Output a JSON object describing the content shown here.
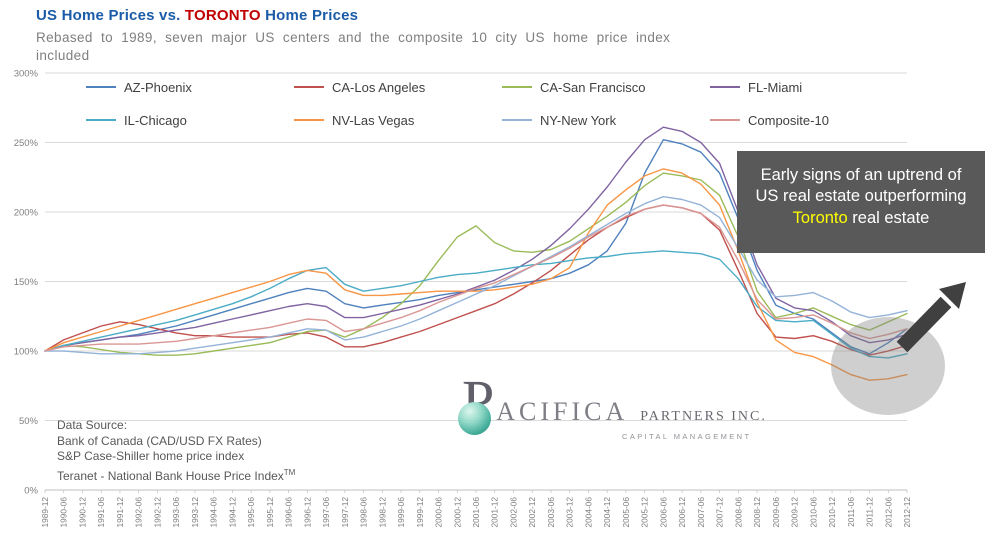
{
  "header": {
    "title_us": "US Home Prices vs.",
    "title_toronto": "TORONTO",
    "title_rest": "Home Prices",
    "title_color": "#1B5CA8",
    "toronto_color": "#C00000",
    "subtitle_line1": "Rebased to 1989, seven major US centers and the composite 10 city US home price index",
    "subtitle_line2": "included"
  },
  "chart_data": {
    "type": "line",
    "title": "US Home Prices vs. TORONTO Home Prices",
    "xlabel": "",
    "ylabel": "",
    "ylim": [
      0,
      300
    ],
    "yticks": [
      0,
      50,
      100,
      150,
      200,
      250,
      300
    ],
    "ytick_suffix": "%",
    "grid": true,
    "legend_position": "top-inside",
    "categories": [
      "1989-12",
      "1990-06",
      "1990-12",
      "1991-06",
      "1991-12",
      "1992-06",
      "1992-12",
      "1993-06",
      "1993-12",
      "1994-06",
      "1994-12",
      "1995-06",
      "1995-12",
      "1996-06",
      "1996-12",
      "1997-06",
      "1997-12",
      "1998-06",
      "1998-12",
      "1999-06",
      "1999-12",
      "2000-06",
      "2000-12",
      "2001-06",
      "2001-12",
      "2002-06",
      "2002-12",
      "2003-06",
      "2003-12",
      "2004-06",
      "2004-12",
      "2005-06",
      "2005-12",
      "2006-06",
      "2006-12",
      "2007-06",
      "2007-12",
      "2008-06",
      "2008-12",
      "2009-06",
      "2009-12",
      "2010-06",
      "2010-12",
      "2011-06",
      "2011-12",
      "2012-06",
      "2012-12"
    ],
    "series": [
      {
        "name": "AZ-Phoenix",
        "color": "#4F81BD",
        "values": [
          100,
          104,
          106,
          108,
          110,
          112,
          115,
          118,
          122,
          126,
          130,
          134,
          138,
          142,
          145,
          143,
          134,
          131,
          133,
          135,
          137,
          140,
          142,
          144,
          146,
          148,
          150,
          152,
          156,
          162,
          172,
          192,
          228,
          252,
          249,
          243,
          228,
          195,
          158,
          133,
          127,
          123,
          113,
          103,
          98,
          106,
          116
        ]
      },
      {
        "name": "CA-Los Angeles",
        "color": "#C0504D",
        "values": [
          100,
          108,
          113,
          118,
          121,
          119,
          116,
          113,
          111,
          111,
          110,
          110,
          110,
          112,
          113,
          110,
          103,
          103,
          106,
          110,
          114,
          119,
          124,
          129,
          134,
          141,
          149,
          158,
          169,
          180,
          189,
          196,
          202,
          205,
          203,
          199,
          187,
          158,
          127,
          110,
          109,
          111,
          107,
          101,
          97,
          100,
          104
        ]
      },
      {
        "name": "CA-San Francisco",
        "color": "#9BBB59",
        "values": [
          100,
          104,
          103,
          101,
          99,
          98,
          97,
          97,
          98,
          100,
          102,
          104,
          106,
          110,
          114,
          115,
          110,
          116,
          124,
          134,
          147,
          165,
          182,
          190,
          178,
          172,
          171,
          173,
          179,
          188,
          197,
          207,
          219,
          228,
          226,
          223,
          212,
          182,
          143,
          124,
          127,
          131,
          125,
          119,
          115,
          121,
          127
        ]
      },
      {
        "name": "FL-Miami",
        "color": "#8064A2",
        "values": [
          100,
          104,
          106,
          108,
          110,
          111,
          113,
          115,
          117,
          120,
          123,
          126,
          129,
          132,
          134,
          132,
          124,
          124,
          127,
          130,
          133,
          137,
          141,
          146,
          151,
          158,
          166,
          176,
          188,
          202,
          218,
          236,
          252,
          261,
          258,
          250,
          235,
          200,
          162,
          138,
          131,
          129,
          121,
          111,
          106,
          108,
          112
        ]
      },
      {
        "name": "IL-Chicago",
        "color": "#4BACC6",
        "values": [
          100,
          104,
          107,
          110,
          113,
          116,
          119,
          122,
          126,
          130,
          134,
          139,
          145,
          152,
          158,
          160,
          148,
          143,
          145,
          147,
          150,
          153,
          155,
          156,
          158,
          160,
          162,
          163,
          165,
          167,
          168,
          170,
          171,
          172,
          171,
          170,
          166,
          152,
          132,
          122,
          121,
          122,
          112,
          102,
          96,
          95,
          98
        ]
      },
      {
        "name": "NV-Las Vegas",
        "color": "#F79646",
        "values": [
          100,
          106,
          110,
          114,
          118,
          122,
          126,
          130,
          134,
          138,
          142,
          146,
          150,
          155,
          158,
          156,
          144,
          140,
          140,
          141,
          142,
          143,
          143,
          143,
          144,
          146,
          148,
          152,
          160,
          185,
          205,
          216,
          226,
          231,
          228,
          220,
          205,
          172,
          135,
          108,
          99,
          96,
          90,
          83,
          79,
          80,
          83
        ]
      },
      {
        "name": "NY-New York",
        "color": "#95B3D7",
        "values": [
          100,
          100,
          99,
          98,
          98,
          98,
          99,
          100,
          102,
          104,
          106,
          108,
          110,
          113,
          116,
          115,
          108,
          110,
          114,
          118,
          123,
          129,
          135,
          141,
          147,
          154,
          161,
          168,
          175,
          183,
          191,
          199,
          206,
          211,
          209,
          205,
          196,
          174,
          151,
          139,
          140,
          142,
          136,
          128,
          124,
          126,
          129
        ]
      },
      {
        "name": "Composite-10",
        "color": "#D99694",
        "values": [
          100,
          103,
          104,
          105,
          105,
          105,
          106,
          107,
          109,
          111,
          113,
          115,
          117,
          120,
          123,
          122,
          114,
          116,
          120,
          124,
          129,
          135,
          140,
          145,
          149,
          155,
          161,
          167,
          174,
          182,
          189,
          197,
          202,
          205,
          203,
          199,
          189,
          165,
          137,
          123,
          124,
          126,
          120,
          113,
          109,
          112,
          116
        ]
      }
    ]
  },
  "annotation": {
    "text_before": "Early signs of an uptrend of US real estate outperforming ",
    "highlight": "Toronto",
    "text_after": " real estate",
    "box_color": "#595959",
    "text_color": "#FFFFFF",
    "highlight_color": "#FFFF00",
    "arrow_color": "#404040",
    "ellipse_color": "#808080"
  },
  "watermark": {
    "initial": "P",
    "name_rest": "ACIFICA",
    "partners": "PARTNERS INC.",
    "subtitle": "CAPITAL MANAGEMENT",
    "sphere_color": "#35A793"
  },
  "data_source": {
    "title": "Data Source:",
    "lines": [
      "Bank of Canada (CAD/USD FX Rates)",
      "S&P Case-Shiller home price index",
      "Teranet - National Bank House Price Index"
    ],
    "trademark": "TM"
  }
}
